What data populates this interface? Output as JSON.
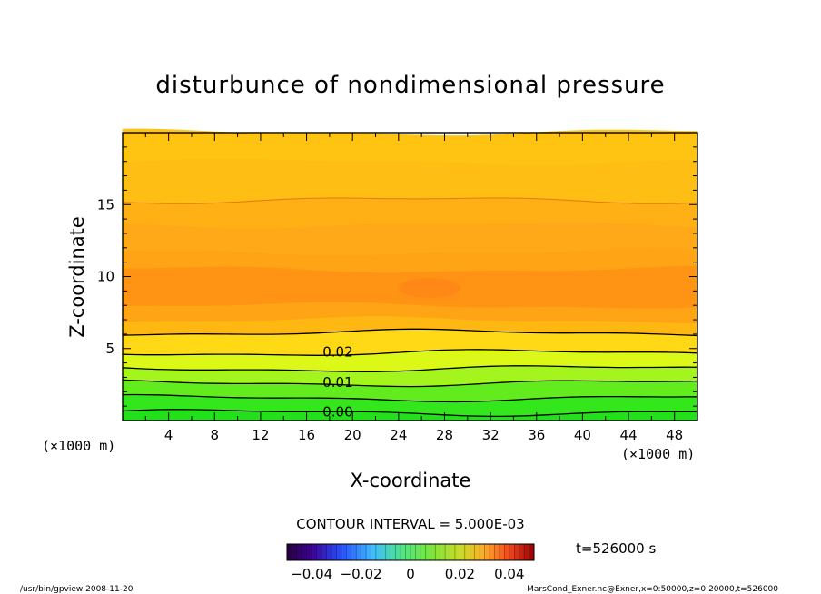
{
  "chart_data": {
    "type": "contour",
    "title": "disturbunce of nondimensional pressure",
    "xlabel": "X-coordinate",
    "ylabel": "Z-coordinate",
    "x_unit": "(×1000 m)",
    "y_unit": "(×1000 m)",
    "xlim": [
      0,
      50
    ],
    "ylim": [
      0,
      20
    ],
    "x_ticks": [
      4,
      8,
      12,
      16,
      20,
      24,
      28,
      32,
      36,
      40,
      44,
      48
    ],
    "y_ticks": [
      5,
      10,
      15
    ],
    "contour_interval_text": "CONTOUR INTERVAL = 5.000E-03",
    "contour_labels": [
      {
        "text": "0.02",
        "x": 17,
        "z": 4.75
      },
      {
        "text": "0.01",
        "x": 17,
        "z": 2.65
      },
      {
        "text": "0.00",
        "x": 17,
        "z": 0.6
      }
    ],
    "contour_levels": [
      {
        "value": 0.0,
        "z": 0.55
      },
      {
        "value": 0.005,
        "z": 1.55
      },
      {
        "value": 0.01,
        "z": 2.6
      },
      {
        "value": 0.015,
        "z": 3.6
      },
      {
        "value": 0.02,
        "z": 4.7
      },
      {
        "value": 0.025,
        "z": 6.1
      },
      {
        "value": 0.035,
        "z": 15.3
      }
    ],
    "bands": [
      {
        "z0": 0,
        "z1": 0.55,
        "color": "#22e01a"
      },
      {
        "z0": 0.55,
        "z1": 1.55,
        "color": "#34e61c"
      },
      {
        "z0": 1.55,
        "z1": 2.6,
        "color": "#62ec1e"
      },
      {
        "z0": 2.6,
        "z1": 3.6,
        "color": "#a4f41e"
      },
      {
        "z0": 3.6,
        "z1": 4.7,
        "color": "#dcf816"
      },
      {
        "z0": 4.7,
        "z1": 6.1,
        "color": "#ffd816"
      },
      {
        "z0": 6.1,
        "z1": 7.0,
        "color": "#ffb812"
      },
      {
        "z0": 7.0,
        "z1": 8.0,
        "color": "#ffa414"
      },
      {
        "z0": 8.0,
        "z1": 10.5,
        "color": "#ff9414"
      },
      {
        "z0": 10.5,
        "z1": 11.7,
        "color": "#ffa414"
      },
      {
        "z0": 11.7,
        "z1": 13.6,
        "color": "#ffa818"
      },
      {
        "z0": 13.6,
        "z1": 15.3,
        "color": "#ffb014"
      },
      {
        "z0": 15.3,
        "z1": 18.0,
        "color": "#ffbe14"
      },
      {
        "z0": 18.0,
        "z1": 20.0,
        "color": "#ffc412"
      }
    ],
    "colorbar": {
      "ticks": [
        "−0.04",
        "−0.02",
        "0",
        "0.02",
        "0.04"
      ],
      "range": [
        -0.05,
        0.05
      ]
    },
    "time_label": "t=526000 s"
  },
  "footer": {
    "left": "/usr/bin/gpview  2008-11-20",
    "right": "MarsCond_Exner.nc@Exner,x=0:50000,z=0:20000,t=526000"
  }
}
